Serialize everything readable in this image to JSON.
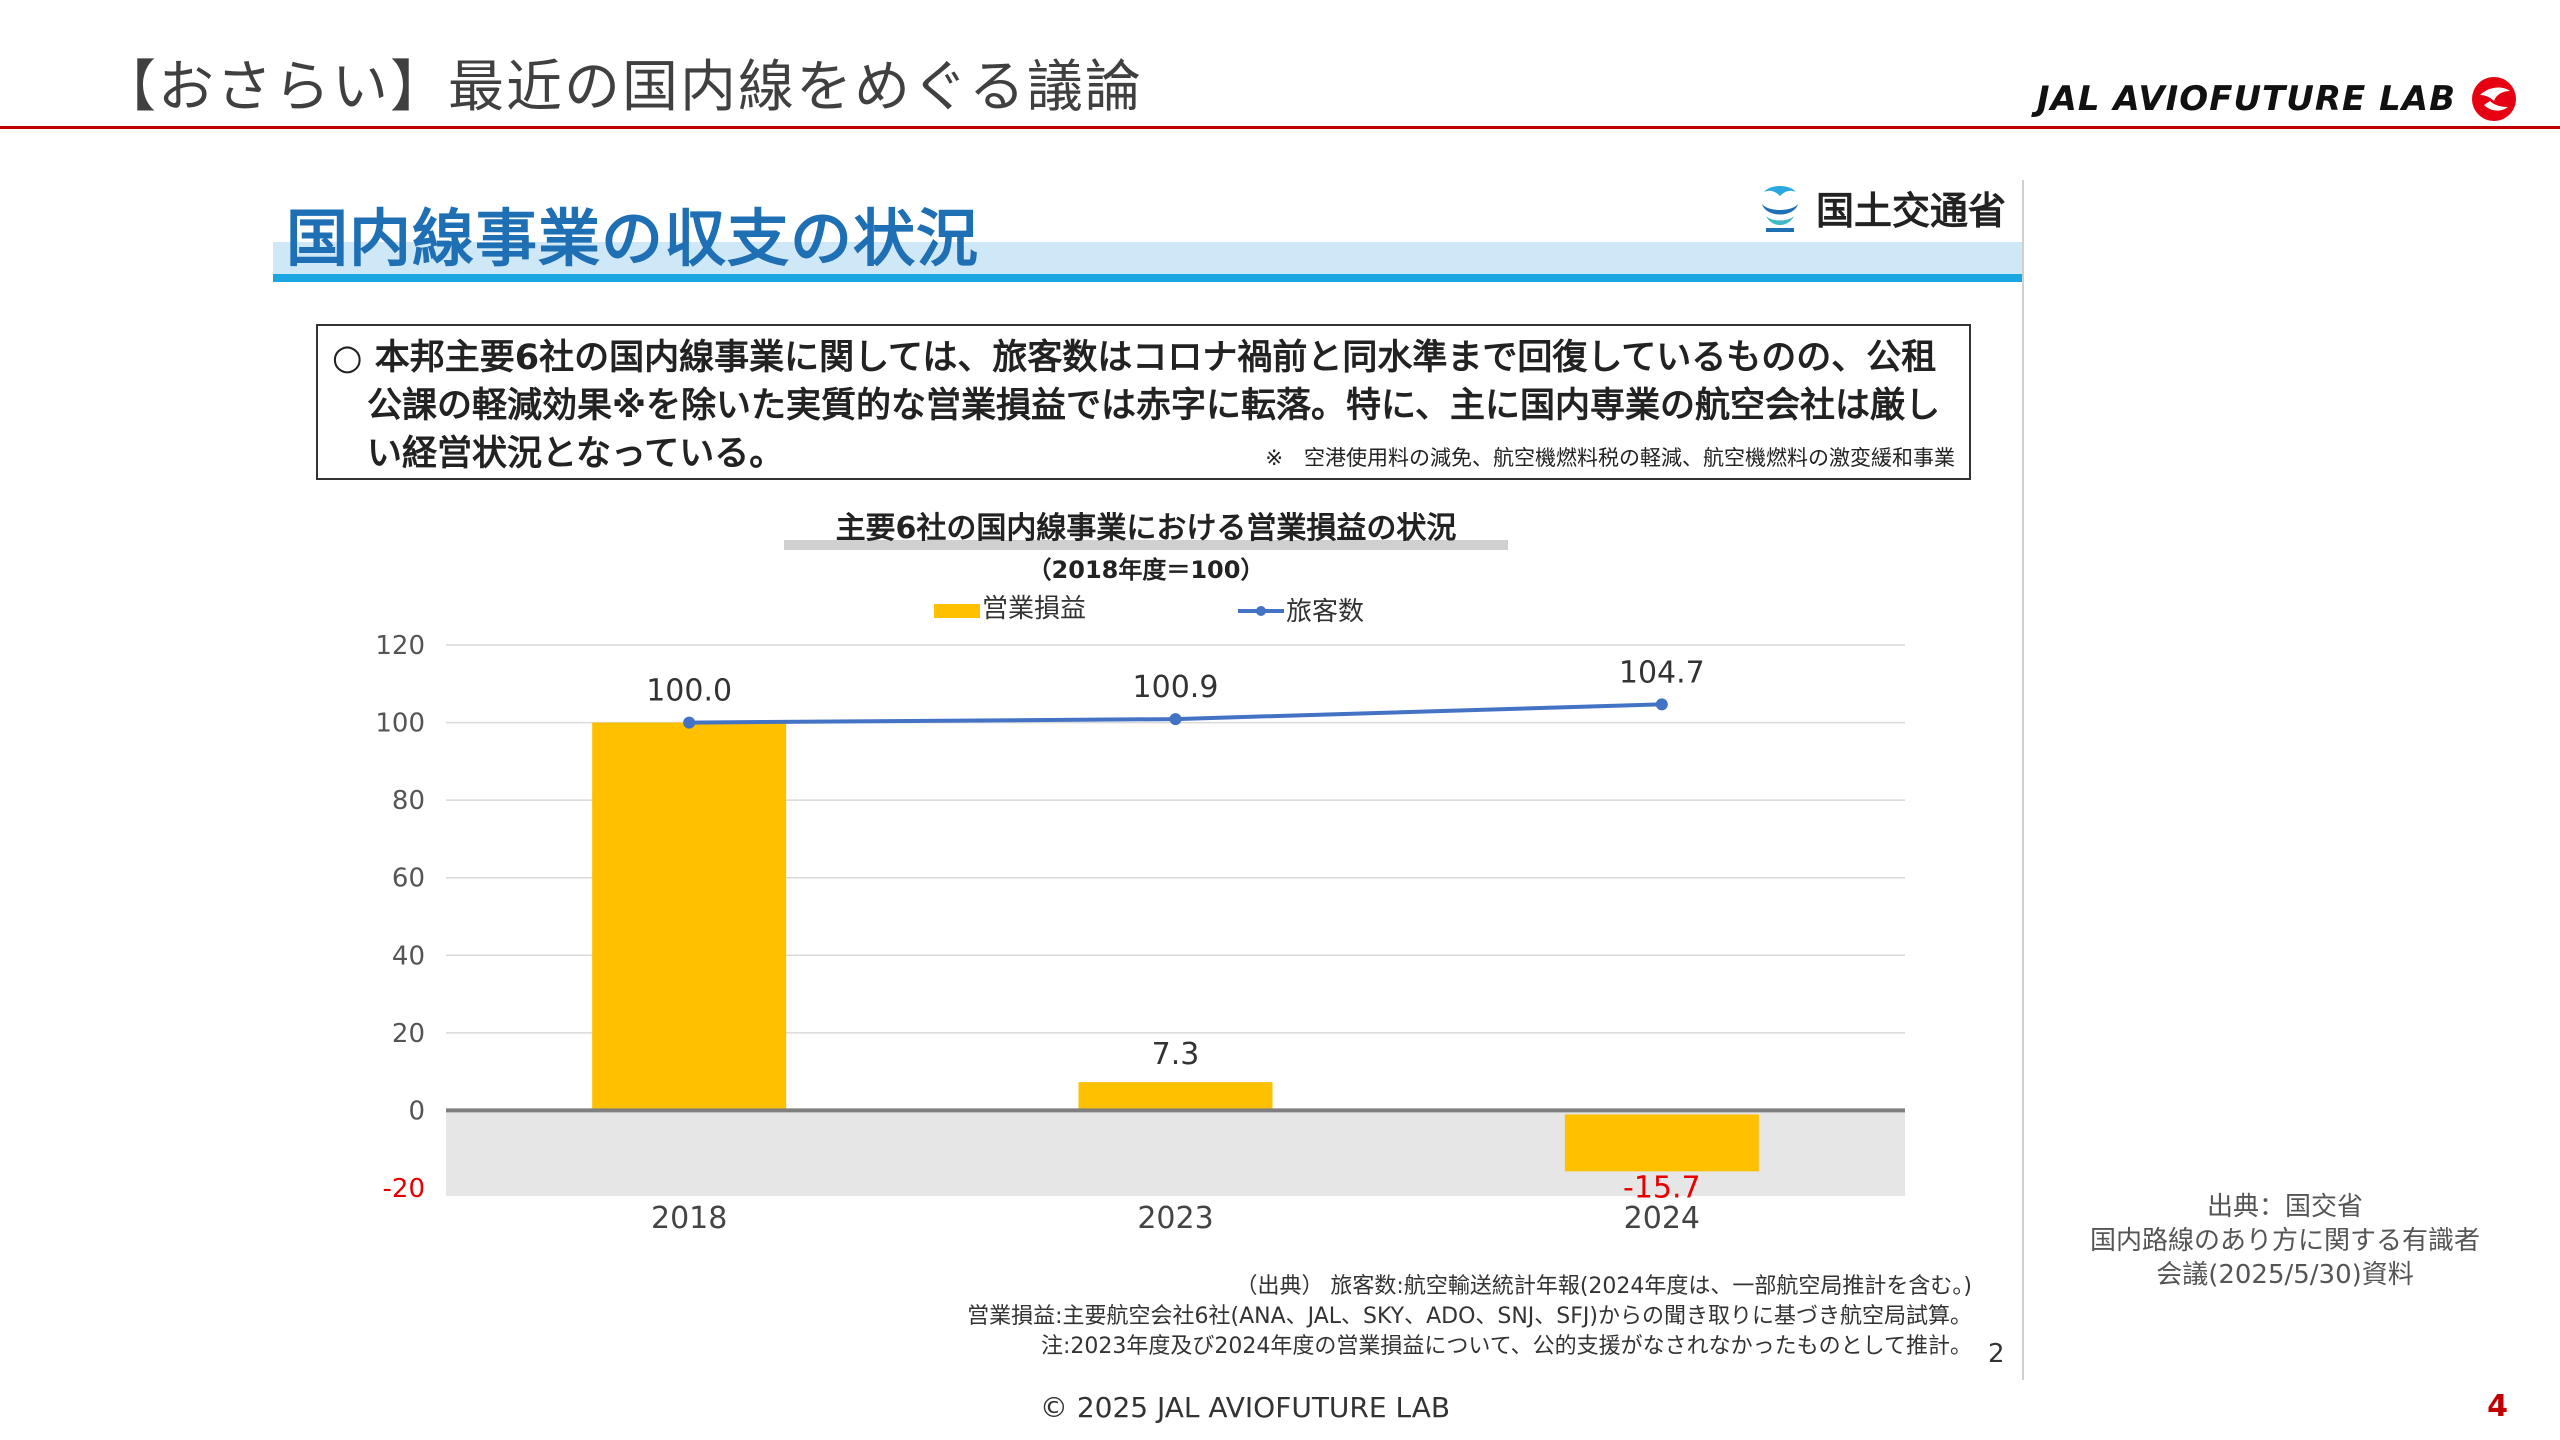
{
  "slide": {
    "title": "【おさらい】最近の国内線をめぐる議論",
    "brand": "JAL AVIOFUTURE LAB",
    "copyright": "© 2025 JAL AVIOFUTURE LAB",
    "page_number": "4",
    "side_source": [
      "出典：国交省",
      "国内路線のあり方に関する有識者",
      "会議(2025/5/30)資料"
    ]
  },
  "embedded": {
    "title": "国内線事業の収支の状況",
    "ministry": "国土交通省",
    "note_lines": [
      "○ 本邦主要6社の国内線事業に関しては、旅客数はコロナ禍前と同水準まで回復しているものの、公租",
      "　公課の軽減効果※を除いた実質的な営業損益では赤字に転落。特に、主に国内専業の航空会社は厳し",
      "　い経営状況となっている。"
    ],
    "note_footnote": "※　空港使用料の減免、航空機燃料税の軽減、航空機燃料の激変緩和事業",
    "source_lines": [
      "（出典） 旅客数:航空輸送統計年報(2024年度は、一部航空局推計を含む。)",
      "営業損益:主要航空会社6社(ANA、JAL、SKY、ADO、SNJ、SFJ)からの聞き取りに基づき航空局試算。",
      "注:2023年度及び2024年度の営業損益について、公的支援がなされなかったものとして推計。"
    ],
    "inner_page": "2"
  },
  "chart_data": {
    "type": "bar+line",
    "title": "主要6社の国内線事業における営業損益の状況",
    "subtitle": "（2018年度＝100）",
    "categories": [
      "2018",
      "2023",
      "2024"
    ],
    "series": [
      {
        "name": "営業損益",
        "type": "bar",
        "values": [
          100.0,
          7.3,
          -15.7
        ],
        "color": "#FFC000",
        "labels": [
          "",
          "7.3",
          "-15.7"
        ]
      },
      {
        "name": "旅客数",
        "type": "line",
        "values": [
          100.0,
          100.9,
          104.7
        ],
        "color": "#4472C4",
        "labels": [
          "100.0",
          "100.9",
          "104.7"
        ]
      }
    ],
    "ylim": [
      -20,
      120
    ],
    "yticks": [
      "120",
      "100",
      "80",
      "60",
      "40",
      "20",
      "0",
      "-20"
    ],
    "negative_tick_color": "#E60000",
    "negative_label_color": "#E60000",
    "negative_region_color": "#E6E6E6",
    "grid": true,
    "legend_position": "top-center"
  }
}
